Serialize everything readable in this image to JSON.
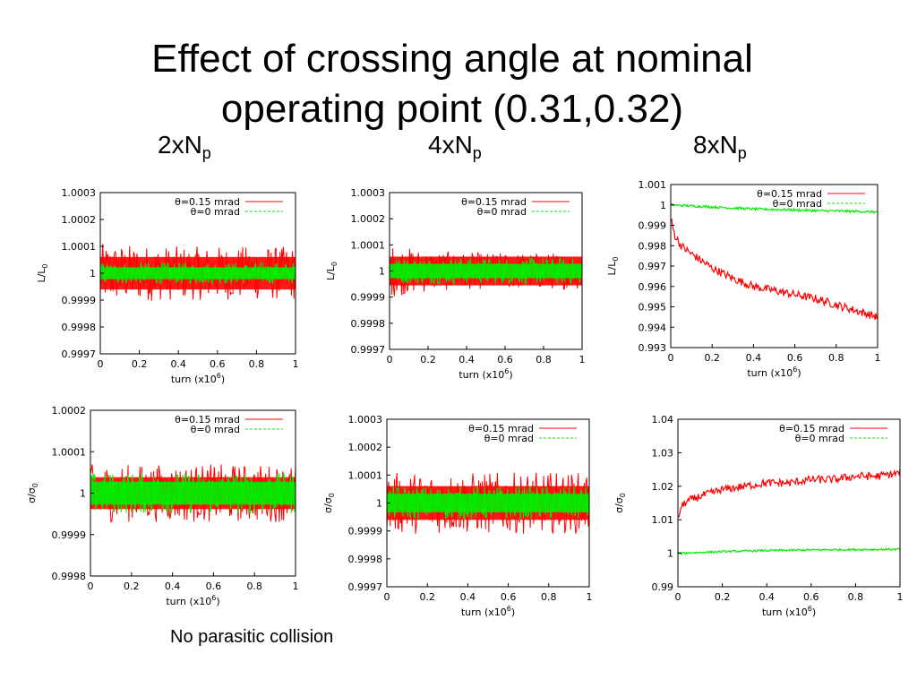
{
  "slide": {
    "title_line1": "Effect of crossing angle at nominal",
    "title_line2": "operating point (0.31,0.32)",
    "columns": [
      {
        "base": "2xN",
        "sub": "p"
      },
      {
        "base": "4xN",
        "sub": "p"
      },
      {
        "base": "8xN",
        "sub": "p"
      }
    ],
    "footnote": "No parasitic collision"
  },
  "colors": {
    "red": "#ff0000",
    "green": "#00ee00"
  },
  "chart_data": [
    {
      "id": "lumi-2xNp",
      "type": "line",
      "ylabel": "L/L",
      "ylabel_sub": "0",
      "xlabel": "turn (x10",
      "xlabel_sup": "6",
      "xlabel_end": ")",
      "xlim": [
        0,
        1
      ],
      "ylim": [
        0.9997,
        1.0003
      ],
      "xticks": [
        "0",
        "0.2",
        "0.4",
        "0.6",
        "0.8",
        "1"
      ],
      "yticks": [
        "0.9997",
        "0.9998",
        "0.9999",
        "1",
        "1.0001",
        "1.0002",
        "1.0003"
      ],
      "legend_position": "top-right",
      "series": [
        {
          "name": "θ=0.15 mrad",
          "color": "red",
          "mode": "band",
          "center": [
            1.0,
            1.0,
            1.0,
            1.0,
            1.0,
            1.0
          ],
          "halfwidth": [
            0.00011,
            0.000105,
            0.0001,
            0.0001,
            0.0001,
            0.0001
          ]
        },
        {
          "name": "θ=0 mrad",
          "color": "green",
          "mode": "band",
          "center": [
            1.0,
            1.0,
            1.0,
            1.0,
            1.0,
            1.0
          ],
          "halfwidth": [
            4e-05,
            4e-05,
            4e-05,
            4e-05,
            4e-05,
            4e-05
          ]
        }
      ]
    },
    {
      "id": "lumi-4xNp",
      "type": "line",
      "ylabel": "L/L",
      "ylabel_sub": "0",
      "xlabel": "turn (x10",
      "xlabel_sup": "6",
      "xlabel_end": ")",
      "xlim": [
        0,
        1
      ],
      "ylim": [
        0.9997,
        1.0003
      ],
      "xticks": [
        "0",
        "0.2",
        "0.4",
        "0.6",
        "0.8",
        "1"
      ],
      "yticks": [
        "0.9997",
        "0.9998",
        "0.9999",
        "1",
        "1.0001",
        "1.0002",
        "1.0003"
      ],
      "legend_position": "top-right",
      "series": [
        {
          "name": "θ=0.15 mrad",
          "color": "red",
          "mode": "band",
          "center": [
            1.0,
            1.0,
            1.0,
            1.0,
            1.0,
            1.0
          ],
          "halfwidth": [
            0.0001,
            8e-05,
            7e-05,
            7e-05,
            7e-05,
            7e-05
          ]
        },
        {
          "name": "θ=0 mrad",
          "color": "green",
          "mode": "band",
          "center": [
            1.0,
            1.0,
            1.0,
            1.0,
            1.0,
            1.0
          ],
          "halfwidth": [
            5e-05,
            5e-05,
            5e-05,
            5e-05,
            5e-05,
            5e-05
          ]
        }
      ]
    },
    {
      "id": "lumi-8xNp",
      "type": "line",
      "ylabel": "L/L",
      "ylabel_sub": "0",
      "xlabel": "turn (x10",
      "xlabel_sup": "6",
      "xlabel_end": ")",
      "xlim": [
        0,
        1
      ],
      "ylim": [
        0.993,
        1.001
      ],
      "xticks": [
        "0",
        "0.2",
        "0.4",
        "0.6",
        "0.8",
        "1"
      ],
      "yticks": [
        "0.993",
        "0.994",
        "0.995",
        "0.996",
        "0.997",
        "0.998",
        "0.999",
        "1",
        "1.001"
      ],
      "legend_position": "top-right",
      "series": [
        {
          "name": "θ=0.15 mrad",
          "color": "red",
          "mode": "curve",
          "x": [
            0,
            0.02,
            0.05,
            0.1,
            0.2,
            0.3,
            0.4,
            0.5,
            0.6,
            0.7,
            0.8,
            0.9,
            1.0
          ],
          "y": [
            0.9993,
            0.9985,
            0.998,
            0.9976,
            0.9969,
            0.9964,
            0.996,
            0.9958,
            0.9956,
            0.9954,
            0.9951,
            0.9948,
            0.9945
          ],
          "noise": 0.0002
        },
        {
          "name": "θ=0 mrad",
          "color": "green",
          "mode": "curve",
          "x": [
            0,
            0.1,
            0.2,
            0.3,
            0.4,
            0.5,
            0.6,
            0.7,
            0.8,
            0.9,
            1.0
          ],
          "y": [
            1.0,
            0.99995,
            0.9999,
            0.99985,
            0.9998,
            0.99978,
            0.99975,
            0.99972,
            0.9997,
            0.99968,
            0.99965
          ],
          "noise": 6e-05
        }
      ]
    },
    {
      "id": "size-2xNp",
      "type": "line",
      "ylabel": "σ/σ",
      "ylabel_sub": "0",
      "xlabel": "turn (x10",
      "xlabel_sup": "6",
      "xlabel_end": ")",
      "xlim": [
        0,
        1
      ],
      "ylim": [
        0.9998,
        1.0002
      ],
      "xticks": [
        "0",
        "0.2",
        "0.4",
        "0.6",
        "0.8",
        "1"
      ],
      "yticks": [
        "0.9998",
        "0.9999",
        "1",
        "1.0001",
        "1.0002"
      ],
      "legend_position": "top-right",
      "series": [
        {
          "name": "θ=0.15 mrad",
          "color": "red",
          "mode": "band",
          "center": [
            1.0,
            1.0,
            1.0,
            1.0,
            1.0,
            1.0
          ],
          "halfwidth": [
            7e-05,
            7e-05,
            7e-05,
            7e-05,
            7e-05,
            7e-05
          ]
        },
        {
          "name": "θ=0 mrad",
          "color": "green",
          "mode": "band",
          "center": [
            1.0,
            1.0,
            1.0,
            1.0,
            1.0,
            1.0
          ],
          "halfwidth": [
            5e-05,
            5e-05,
            5e-05,
            5e-05,
            5e-05,
            5e-05
          ]
        }
      ]
    },
    {
      "id": "size-4xNp",
      "type": "line",
      "ylabel": "σ/σ",
      "ylabel_sub": "0",
      "xlabel": "turn (x10",
      "xlabel_sup": "6",
      "xlabel_end": ")",
      "xlim": [
        0,
        1
      ],
      "ylim": [
        0.9997,
        1.0003
      ],
      "xticks": [
        "0",
        "0.2",
        "0.4",
        "0.6",
        "0.8",
        "1"
      ],
      "yticks": [
        "0.9997",
        "0.9998",
        "0.9999",
        "1",
        "1.0001",
        "1.0002",
        "1.0003"
      ],
      "legend_position": "top-right",
      "series": [
        {
          "name": "θ=0.15 mrad",
          "color": "red",
          "mode": "band",
          "center": [
            1.0,
            1.0,
            1.0,
            1.0,
            1.0,
            1.0
          ],
          "halfwidth": [
            0.00011,
            0.00011,
            0.00011,
            0.00011,
            0.00011,
            0.00011
          ]
        },
        {
          "name": "θ=0 mrad",
          "color": "green",
          "mode": "band",
          "center": [
            1.0,
            1.0,
            1.0,
            1.0,
            1.0,
            1.0
          ],
          "halfwidth": [
            6e-05,
            6e-05,
            6e-05,
            6e-05,
            6e-05,
            6e-05
          ]
        }
      ]
    },
    {
      "id": "size-8xNp",
      "type": "line",
      "ylabel": "σ/σ",
      "ylabel_sub": "0",
      "xlabel": "turn (x10",
      "xlabel_sup": "6",
      "xlabel_end": ")",
      "xlim": [
        0,
        1
      ],
      "ylim": [
        0.99,
        1.04
      ],
      "xticks": [
        "0",
        "0.2",
        "0.4",
        "0.6",
        "0.8",
        "1"
      ],
      "yticks": [
        "0.99",
        "1",
        "1.01",
        "1.02",
        "1.03",
        "1.04"
      ],
      "legend_position": "top-right",
      "series": [
        {
          "name": "θ=0.15 mrad",
          "color": "red",
          "mode": "curve",
          "x": [
            0,
            0.01,
            0.03,
            0.06,
            0.1,
            0.2,
            0.3,
            0.4,
            0.5,
            0.6,
            0.7,
            0.8,
            0.9,
            1.0
          ],
          "y": [
            1.01,
            1.013,
            1.015,
            1.016,
            1.017,
            1.019,
            1.02,
            1.021,
            1.021,
            1.022,
            1.022,
            1.023,
            1.023,
            1.024
          ],
          "noise": 0.0012
        },
        {
          "name": "θ=0 mrad",
          "color": "green",
          "mode": "curve",
          "x": [
            0,
            0.2,
            0.4,
            0.6,
            0.8,
            1.0
          ],
          "y": [
            1.0,
            1.0005,
            1.0008,
            1.001,
            1.0011,
            1.0012
          ],
          "noise": 0.0003
        }
      ]
    }
  ]
}
